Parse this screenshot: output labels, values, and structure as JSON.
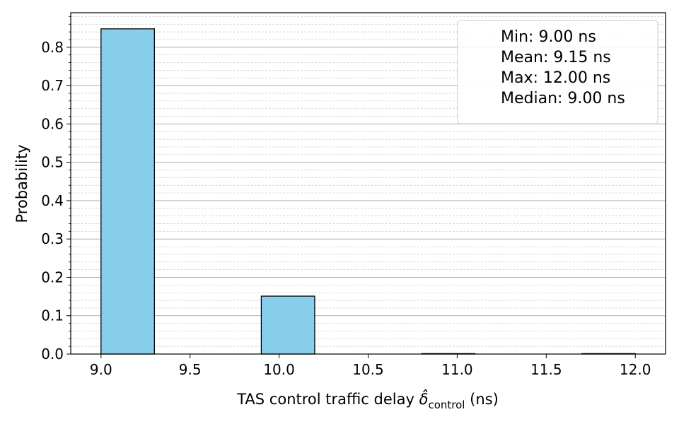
{
  "chart_data": {
    "type": "bar",
    "bins": [
      {
        "start": 9.0,
        "end": 9.3,
        "value": 0.848
      },
      {
        "start": 9.3,
        "end": 9.6,
        "value": 0.0
      },
      {
        "start": 9.6,
        "end": 9.9,
        "value": 0.0
      },
      {
        "start": 9.9,
        "end": 10.2,
        "value": 0.151
      },
      {
        "start": 10.2,
        "end": 10.5,
        "value": 0.0
      },
      {
        "start": 10.5,
        "end": 10.8,
        "value": 0.0
      },
      {
        "start": 10.8,
        "end": 11.1,
        "value": 0.001
      },
      {
        "start": 11.1,
        "end": 11.4,
        "value": 0.0
      },
      {
        "start": 11.4,
        "end": 11.7,
        "value": 0.0
      },
      {
        "start": 11.7,
        "end": 12.0,
        "value": 0.0003
      }
    ],
    "xlabel_main": "TAS control traffic delay ",
    "xlabel_symbol": "δ̂",
    "xlabel_sub": "control",
    "xlabel_unit": " (ns)",
    "ylabel": "Probability",
    "xlim": [
      8.83,
      12.17
    ],
    "ylim": [
      0.0,
      0.89
    ],
    "xticks": [
      {
        "value": 9.0,
        "label": "9.0"
      },
      {
        "value": 9.5,
        "label": "9.5"
      },
      {
        "value": 10.0,
        "label": "10.0"
      },
      {
        "value": 10.5,
        "label": "10.5"
      },
      {
        "value": 11.0,
        "label": "11.0"
      },
      {
        "value": 11.5,
        "label": "11.5"
      },
      {
        "value": 12.0,
        "label": "12.0"
      }
    ],
    "yticks": [
      {
        "value": 0.0,
        "label": "0.0"
      },
      {
        "value": 0.1,
        "label": "0.1"
      },
      {
        "value": 0.2,
        "label": "0.2"
      },
      {
        "value": 0.3,
        "label": "0.3"
      },
      {
        "value": 0.4,
        "label": "0.4"
      },
      {
        "value": 0.5,
        "label": "0.5"
      },
      {
        "value": 0.6,
        "label": "0.6"
      },
      {
        "value": 0.7,
        "label": "0.7"
      },
      {
        "value": 0.8,
        "label": "0.8"
      }
    ],
    "minor_ytick_step": 0.02,
    "grid": true,
    "legend_placement": "top-right",
    "legend_lines": [
      "Min: 9.00 ns",
      "Mean: 9.15 ns",
      "Max: 12.00 ns",
      "Median: 9.00 ns"
    ],
    "bar_color": "#87ceeb",
    "edge_color": "#000000"
  }
}
